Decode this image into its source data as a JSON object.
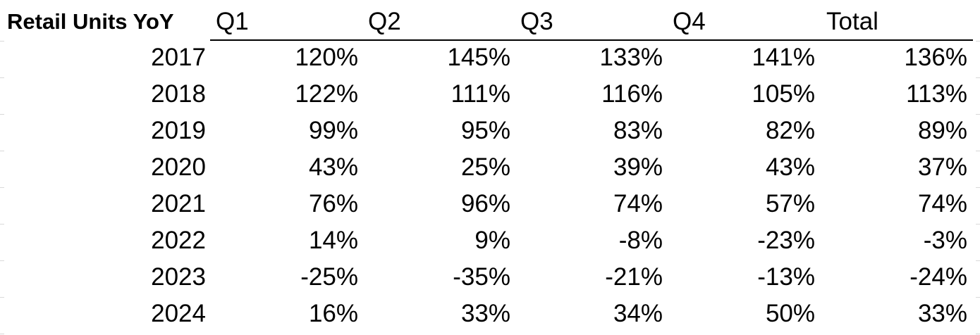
{
  "table": {
    "header": [
      "Retail Units YoY",
      "Q1",
      "Q2",
      "Q3",
      "Q4",
      "Total"
    ],
    "rows": [
      [
        "2017",
        "120%",
        "145%",
        "133%",
        "141%",
        "136%"
      ],
      [
        "2018",
        "122%",
        "111%",
        "116%",
        "105%",
        "113%"
      ],
      [
        "2019",
        "99%",
        "95%",
        "83%",
        "82%",
        "89%"
      ],
      [
        "2020",
        "43%",
        "25%",
        "39%",
        "43%",
        "37%"
      ],
      [
        "2021",
        "76%",
        "96%",
        "74%",
        "57%",
        "74%"
      ],
      [
        "2022",
        "14%",
        "9%",
        "-8%",
        "-23%",
        "-3%"
      ],
      [
        "2023",
        "-25%",
        "-35%",
        "-21%",
        "-13%",
        "-24%"
      ],
      [
        "2024",
        "16%",
        "33%",
        "34%",
        "50%",
        "33%"
      ]
    ]
  }
}
